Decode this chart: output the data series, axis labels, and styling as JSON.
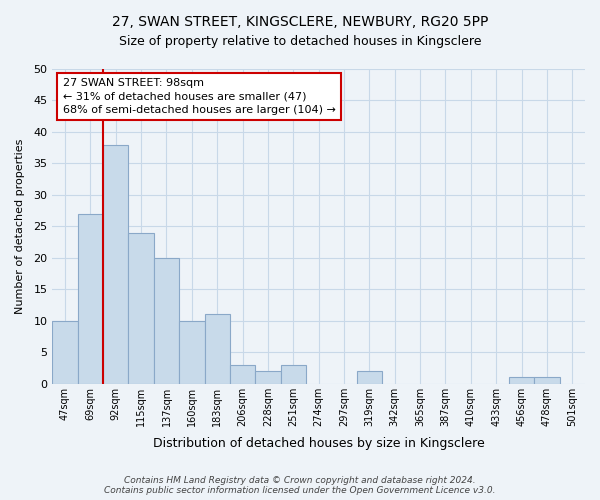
{
  "title": "27, SWAN STREET, KINGSCLERE, NEWBURY, RG20 5PP",
  "subtitle": "Size of property relative to detached houses in Kingsclere",
  "xlabel": "Distribution of detached houses by size in Kingsclere",
  "ylabel": "Number of detached properties",
  "bin_labels": [
    "47sqm",
    "69sqm",
    "92sqm",
    "115sqm",
    "137sqm",
    "160sqm",
    "183sqm",
    "206sqm",
    "228sqm",
    "251sqm",
    "274sqm",
    "297sqm",
    "319sqm",
    "342sqm",
    "365sqm",
    "387sqm",
    "410sqm",
    "433sqm",
    "456sqm",
    "478sqm",
    "501sqm"
  ],
  "bar_heights": [
    10,
    27,
    38,
    24,
    20,
    10,
    11,
    3,
    2,
    3,
    0,
    0,
    2,
    0,
    0,
    0,
    0,
    0,
    1,
    1,
    0
  ],
  "bar_color": "#c8daea",
  "bar_edge_color": "#8aa8c8",
  "grid_color": "#c8d8e8",
  "reference_line_color": "#cc0000",
  "annotation_text": "27 SWAN STREET: 98sqm\n← 31% of detached houses are smaller (47)\n68% of semi-detached houses are larger (104) →",
  "annotation_box_color": "#ffffff",
  "annotation_box_edge": "#cc0000",
  "ylim": [
    0,
    50
  ],
  "yticks": [
    0,
    5,
    10,
    15,
    20,
    25,
    30,
    35,
    40,
    45,
    50
  ],
  "footer_line1": "Contains HM Land Registry data © Crown copyright and database right 2024.",
  "footer_line2": "Contains public sector information licensed under the Open Government Licence v3.0.",
  "bg_color": "#eef3f8"
}
